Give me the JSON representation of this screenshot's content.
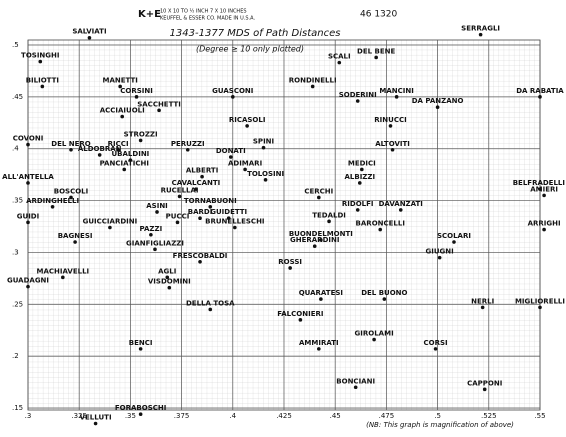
{
  "chart_data": {
    "type": "scatter",
    "brand": "K+E",
    "paper_spec": "10 X 10 TO ½ INCH   7 X 10 INCHES",
    "paper_maker": "KEUFFEL & ESSER CO.  MADE IN U.S.A.",
    "catalog_number": "46 1320",
    "title": "1343-1377 MDS of Path Distances",
    "subtitle": "(Degree ≥ 10 only plotted)",
    "note": "(NB: This graph is magnification of above)",
    "color": "#111111",
    "xlim": [
      0.3,
      0.55
    ],
    "ylim": [
      0.15,
      0.5
    ],
    "xticks": [
      {
        "value": 0.3,
        "label": ".3"
      },
      {
        "value": 0.325,
        "label": ".325"
      },
      {
        "value": 0.35,
        "label": ".35"
      },
      {
        "value": 0.375,
        "label": ".375"
      },
      {
        "value": 0.4,
        "label": ".4"
      },
      {
        "value": 0.425,
        "label": ".425"
      },
      {
        "value": 0.45,
        "label": ".45"
      },
      {
        "value": 0.475,
        "label": ".475"
      },
      {
        "value": 0.5,
        "label": ".5"
      },
      {
        "value": 0.525,
        "label": ".525"
      },
      {
        "value": 0.55,
        "label": ".55"
      }
    ],
    "yticks": [
      {
        "value": 0.5,
        "label": ".5"
      },
      {
        "value": 0.45,
        "label": ".45"
      },
      {
        "value": 0.4,
        "label": ".4"
      },
      {
        "value": 0.35,
        "label": ".35"
      },
      {
        "value": 0.3,
        "label": ".3"
      },
      {
        "value": 0.25,
        "label": ".25"
      },
      {
        "value": 0.2,
        "label": ".2"
      },
      {
        "value": 0.15,
        "label": ".15"
      }
    ],
    "grid": true,
    "labels": [
      "SALVIATI",
      "SERRAGLI",
      "TOSINGHI",
      "DEL BENE",
      "SCALI",
      "BILIOTTI",
      "MANETTI",
      "RONDINELLI",
      "MANCINI",
      "DA RABATIA",
      "CORSINI",
      "GUASCONI",
      "SODERINI",
      "DA PANZANO",
      "SACCHETTI",
      "ACCIAIUOLI",
      "RINUCCI",
      "RICASOLI",
      "COVONI",
      "DEL NERO",
      "RICCI",
      "STROZZI",
      "PERUZZI",
      "SPINI",
      "ALTOVITI",
      "ALDOBRAN",
      "UBALDINI",
      "DONATI",
      "PANCIATICHI",
      "ADIMARI",
      "MEDICI",
      "ALBERTI",
      "TOLOSINI",
      "ALBIZZI",
      "CAVALCANTI",
      "BELFRADELLI",
      "ALL'ANTELLA",
      "AMIERI",
      "BOSCOLI",
      "RUCELLAI",
      "CERCHI",
      "ARDINGHELLI",
      "ASINI",
      "TORNABUONI",
      "RIDOLFI",
      "DAVANZATI",
      "BARDI",
      "GUIDETTI",
      "GUIDI",
      "GUICCIARDINI",
      "PUCCI",
      "BRUNELLESCHI",
      "TEDALDI",
      "BARONCELLI",
      "ARRIGHI",
      "PAZZI",
      "BAGNESI",
      "BUONDELMONTI",
      "SCOLARI",
      "GIANFIGLIAZZI",
      "GHERARDINI",
      "GIUGNI",
      "FRESCOBALDI",
      "ROSSI",
      "MACHIAVELLI",
      "AGLI",
      "GUADAGNI",
      "VISDOMINI",
      "QUARATESI",
      "DEL BUONO",
      "DELLA TOSA",
      "NERLI",
      "MIGLIORELLI",
      "FALCONIERI",
      "GIROLAMI",
      "BENCI",
      "AMMIRATI",
      "CORSI",
      "BONCIANI",
      "CAPPONI",
      "VELLUTI",
      "FORABOSCHI"
    ],
    "x": [
      0.33,
      0.521,
      0.306,
      0.47,
      0.452,
      0.307,
      0.345,
      0.439,
      0.48,
      0.55,
      0.353,
      0.4,
      0.461,
      0.5,
      0.364,
      0.346,
      0.477,
      0.407,
      0.3,
      0.321,
      0.344,
      0.355,
      0.378,
      0.415,
      0.478,
      0.335,
      0.35,
      0.399,
      0.347,
      0.406,
      0.463,
      0.385,
      0.416,
      0.462,
      0.382,
      0.55,
      0.3,
      0.552,
      0.321,
      0.374,
      0.442,
      0.312,
      0.363,
      0.389,
      0.461,
      0.482,
      0.384,
      0.398,
      0.3,
      0.34,
      0.373,
      0.401,
      0.447,
      0.472,
      0.552,
      0.36,
      0.323,
      0.443,
      0.508,
      0.362,
      0.44,
      0.501,
      0.384,
      0.428,
      0.317,
      0.368,
      0.3,
      0.369,
      0.443,
      0.474,
      0.389,
      0.522,
      0.55,
      0.433,
      0.469,
      0.355,
      0.442,
      0.499,
      0.46,
      0.523,
      0.333,
      0.355
    ],
    "values": [
      0.507,
      0.51,
      0.484,
      0.488,
      0.483,
      0.46,
      0.46,
      0.46,
      0.45,
      0.45,
      0.45,
      0.45,
      0.446,
      0.44,
      0.437,
      0.431,
      0.422,
      0.422,
      0.404,
      0.399,
      0.399,
      0.408,
      0.399,
      0.401,
      0.399,
      0.394,
      0.389,
      0.392,
      0.38,
      0.38,
      0.38,
      0.373,
      0.37,
      0.367,
      0.361,
      0.361,
      0.367,
      0.355,
      0.353,
      0.354,
      0.353,
      0.344,
      0.339,
      0.344,
      0.341,
      0.341,
      0.333,
      0.333,
      0.329,
      0.324,
      0.329,
      0.324,
      0.33,
      0.322,
      0.322,
      0.317,
      0.31,
      0.312,
      0.31,
      0.303,
      0.306,
      0.295,
      0.291,
      0.285,
      0.276,
      0.276,
      0.267,
      0.266,
      0.255,
      0.255,
      0.245,
      0.247,
      0.247,
      0.235,
      0.216,
      0.207,
      0.207,
      0.207,
      0.17,
      0.168,
      0.135,
      0.144
    ]
  }
}
